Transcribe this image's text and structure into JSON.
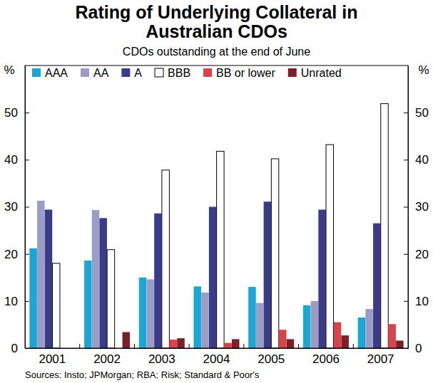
{
  "chart_data": {
    "type": "bar",
    "title": "Rating of Underlying Collateral in Australian CDOs",
    "subtitle": "CDOs outstanding at the end of June",
    "y_label": "%",
    "source": "Sources: Insto; JPMorgan; RBA; Risk; Standard & Poor's",
    "categories": [
      "2001",
      "2002",
      "2003",
      "2004",
      "2005",
      "2006",
      "2007"
    ],
    "series": [
      {
        "name": "AAA",
        "color": "#1ba6d3",
        "values": [
          21.2,
          18.6,
          15.0,
          13.1,
          13.0,
          9.1,
          6.5
        ]
      },
      {
        "name": "AA",
        "color": "#9b9dc6",
        "values": [
          31.3,
          29.3,
          14.6,
          11.8,
          9.6,
          10.0,
          8.3
        ]
      },
      {
        "name": "A",
        "color": "#3a3c8a",
        "values": [
          29.4,
          27.6,
          28.6,
          30.0,
          31.1,
          29.4,
          26.5
        ]
      },
      {
        "name": "BBB",
        "color": "#ffffff",
        "values": [
          18.0,
          20.9,
          37.8,
          41.8,
          40.2,
          43.2,
          51.9
        ]
      },
      {
        "name": "BB or lower",
        "color": "#d9434a",
        "values": [
          0,
          0,
          1.8,
          1.1,
          3.9,
          5.5,
          5.1
        ]
      },
      {
        "name": "Unrated",
        "color": "#7b1f2b",
        "values": [
          0,
          3.4,
          2.1,
          1.9,
          1.9,
          2.7,
          1.6
        ]
      }
    ],
    "ylim": [
      0,
      60
    ],
    "yticks": [
      0,
      10,
      20,
      30,
      40,
      50
    ],
    "legend": "top",
    "grid": false
  }
}
